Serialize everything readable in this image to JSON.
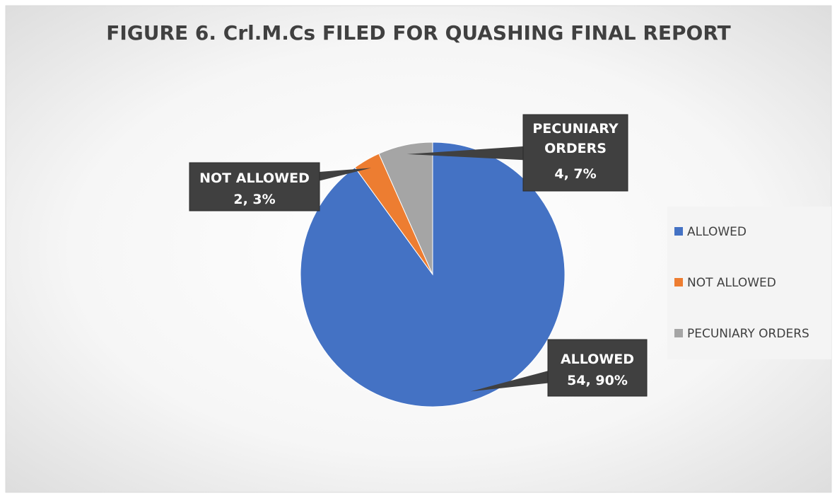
{
  "chart_data": {
    "type": "pie",
    "title": "FIGURE 6. Crl.M.Cs FILED FOR QUASHING FINAL REPORT",
    "categories": [
      "ALLOWED",
      "NOT ALLOWED",
      "PECUNIARY ORDERS"
    ],
    "values": [
      54,
      2,
      4
    ],
    "value_labels": [
      "54, 90%",
      "2, 3%",
      "4, 7%"
    ],
    "colors": [
      "#4472c4",
      "#ed7d31",
      "#a5a5a5"
    ],
    "legend": "right"
  }
}
